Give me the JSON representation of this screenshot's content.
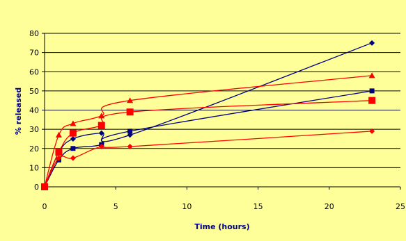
{
  "chart_data": {
    "type": "line",
    "title": "",
    "xlabel": "Time (hours)",
    "ylabel": "% released",
    "xlim": [
      0,
      25
    ],
    "ylim": [
      0,
      80
    ],
    "x_ticks": [
      "0",
      "5",
      "10",
      "15",
      "20",
      "25"
    ],
    "y_ticks": [
      "0",
      "10",
      "20",
      "30",
      "40",
      "50",
      "60",
      "70",
      "80"
    ],
    "grid": "horizontal",
    "legend": "none",
    "background": "#ffff99",
    "series": [
      {
        "color": "#000080",
        "marker": "diamond",
        "x": [
          0,
          1,
          2,
          4,
          6,
          23
        ],
        "y": [
          0,
          18,
          25,
          28,
          27,
          75
        ]
      },
      {
        "color": "#000080",
        "marker": "square",
        "x": [
          0,
          1,
          2,
          4,
          6,
          23
        ],
        "y": [
          0,
          14,
          20,
          22,
          29,
          50
        ]
      },
      {
        "color": "#ff0000",
        "marker": "triangle",
        "x": [
          0,
          1,
          2,
          4,
          6,
          23
        ],
        "y": [
          0,
          27,
          33,
          37,
          45,
          58
        ]
      },
      {
        "color": "#ff0000",
        "marker": "square-large",
        "x": [
          0,
          1,
          2,
          4,
          6,
          23
        ],
        "y": [
          0,
          18,
          28,
          32,
          39,
          45
        ]
      },
      {
        "color": "#ff0000",
        "marker": "diamond",
        "x": [
          0,
          1,
          2,
          4,
          6,
          23
        ],
        "y": [
          0,
          15,
          15,
          21,
          21,
          29
        ]
      }
    ]
  }
}
